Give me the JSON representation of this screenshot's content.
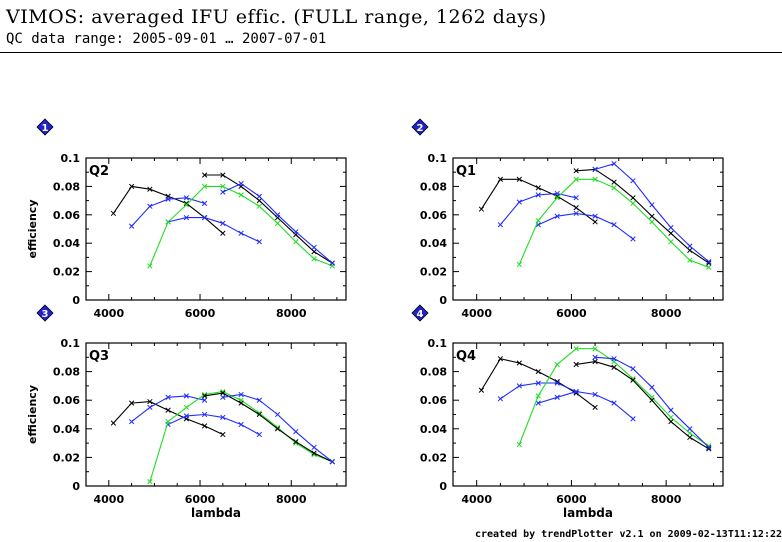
{
  "header": {
    "title": "VIMOS: averaged IFU effic. (FULL range, 1262 days)",
    "subtitle": "QC data range: 2005-09-01 … 2007-07-01"
  },
  "footer": {
    "text": "created by trendPlotter v2.1 on 2009-02-13T11:12:22"
  },
  "colors": {
    "black": "#000000",
    "blue": "#1f2bff",
    "green": "#22dd22",
    "marker": "#2222cc"
  },
  "chart_data": [
    {
      "type": "line",
      "marker": "1",
      "title": "Q2",
      "xlabel": "",
      "ylabel": "efficiency",
      "xlim": [
        3500,
        9200
      ],
      "ylim": [
        0,
        0.1
      ],
      "xticks": [
        "4000",
        "6000",
        "8000"
      ],
      "yticks": [
        "0",
        "0.02",
        "0.04",
        "0.06",
        "0.08",
        "0.1"
      ],
      "series": [
        {
          "color": "black",
          "x": [
            4100,
            4500,
            4900,
            5300,
            5700,
            6100,
            6500
          ],
          "y": [
            0.061,
            0.08,
            0.078,
            0.073,
            0.068,
            0.058,
            0.047
          ]
        },
        {
          "color": "blue",
          "x": [
            4500,
            4900,
            5300,
            5700,
            6100
          ],
          "y": [
            0.052,
            0.066,
            0.071,
            0.072,
            0.068
          ]
        },
        {
          "color": "blue",
          "x": [
            5300,
            5700,
            6100,
            6500,
            6900,
            7300
          ],
          "y": [
            0.055,
            0.058,
            0.058,
            0.054,
            0.047,
            0.041
          ]
        },
        {
          "color": "green",
          "x": [
            4900,
            5300,
            5700,
            6100,
            6500,
            6900,
            7300,
            7700,
            8100,
            8500,
            8900
          ],
          "y": [
            0.024,
            0.055,
            0.067,
            0.08,
            0.08,
            0.074,
            0.066,
            0.054,
            0.041,
            0.029,
            0.024
          ]
        },
        {
          "color": "black",
          "x": [
            6100,
            6500,
            6900,
            7300,
            7700,
            8100,
            8500,
            8900
          ],
          "y": [
            0.088,
            0.088,
            0.08,
            0.07,
            0.058,
            0.046,
            0.034,
            0.026
          ]
        },
        {
          "color": "blue",
          "x": [
            6500,
            6900,
            7300,
            7700,
            8100,
            8500,
            8900
          ],
          "y": [
            0.076,
            0.082,
            0.073,
            0.06,
            0.048,
            0.037,
            0.026
          ]
        }
      ]
    },
    {
      "type": "line",
      "marker": "2",
      "title": "Q1",
      "xlabel": "",
      "ylabel": "",
      "xlim": [
        3500,
        9200
      ],
      "ylim": [
        0,
        0.1
      ],
      "xticks": [
        "4000",
        "6000",
        "8000"
      ],
      "yticks": [
        "0",
        "0.02",
        "0.04",
        "0.06",
        "0.08",
        "0.1"
      ],
      "series": [
        {
          "color": "black",
          "x": [
            4100,
            4500,
            4900,
            5300,
            5700,
            6100,
            6500
          ],
          "y": [
            0.064,
            0.085,
            0.085,
            0.079,
            0.073,
            0.065,
            0.055
          ]
        },
        {
          "color": "blue",
          "x": [
            4500,
            4900,
            5300,
            5700,
            6100
          ],
          "y": [
            0.053,
            0.069,
            0.074,
            0.075,
            0.072
          ]
        },
        {
          "color": "blue",
          "x": [
            5300,
            5700,
            6100,
            6500,
            6900,
            7300
          ],
          "y": [
            0.053,
            0.059,
            0.061,
            0.059,
            0.053,
            0.043
          ]
        },
        {
          "color": "green",
          "x": [
            4900,
            5300,
            5700,
            6100,
            6500,
            6900,
            7300,
            7700,
            8100,
            8500,
            8900
          ],
          "y": [
            0.025,
            0.056,
            0.072,
            0.085,
            0.085,
            0.079,
            0.068,
            0.055,
            0.041,
            0.028,
            0.023
          ]
        },
        {
          "color": "black",
          "x": [
            6100,
            6500,
            6900,
            7300,
            7700,
            8100,
            8500,
            8900
          ],
          "y": [
            0.091,
            0.092,
            0.083,
            0.072,
            0.059,
            0.047,
            0.035,
            0.026
          ]
        },
        {
          "color": "blue",
          "x": [
            6500,
            6900,
            7300,
            7700,
            8100,
            8500,
            8900
          ],
          "y": [
            0.092,
            0.096,
            0.084,
            0.067,
            0.051,
            0.038,
            0.027
          ]
        }
      ]
    },
    {
      "type": "line",
      "marker": "3",
      "title": "Q3",
      "xlabel": "lambda",
      "ylabel": "efficiency",
      "xlim": [
        3500,
        9200
      ],
      "ylim": [
        0,
        0.1
      ],
      "xticks": [
        "4000",
        "6000",
        "8000"
      ],
      "yticks": [
        "0",
        "0.02",
        "0.04",
        "0.06",
        "0.08",
        "0.1"
      ],
      "series": [
        {
          "color": "black",
          "x": [
            4100,
            4500,
            4900,
            5300,
            5700,
            6100,
            6500
          ],
          "y": [
            0.044,
            0.058,
            0.059,
            0.053,
            0.047,
            0.042,
            0.036
          ]
        },
        {
          "color": "blue",
          "x": [
            4500,
            4900,
            5300,
            5700,
            6100
          ],
          "y": [
            0.045,
            0.055,
            0.062,
            0.063,
            0.06
          ]
        },
        {
          "color": "blue",
          "x": [
            5300,
            5700,
            6100,
            6500,
            6900,
            7300
          ],
          "y": [
            0.043,
            0.049,
            0.05,
            0.048,
            0.043,
            0.036
          ]
        },
        {
          "color": "green",
          "x": [
            4900,
            5300,
            5700,
            6100,
            6500,
            6900,
            7300,
            7700,
            8100,
            8500,
            8900
          ],
          "y": [
            0.003,
            0.045,
            0.055,
            0.064,
            0.066,
            0.06,
            0.051,
            0.041,
            0.03,
            0.022,
            0.017
          ]
        },
        {
          "color": "black",
          "x": [
            6100,
            6500,
            6900,
            7300,
            7700,
            8100,
            8500,
            8900
          ],
          "y": [
            0.063,
            0.065,
            0.058,
            0.05,
            0.04,
            0.031,
            0.023,
            0.017
          ]
        },
        {
          "color": "blue",
          "x": [
            6500,
            6900,
            7300,
            7700,
            8100,
            8500,
            8900
          ],
          "y": [
            0.062,
            0.064,
            0.06,
            0.05,
            0.038,
            0.027,
            0.017
          ]
        }
      ]
    },
    {
      "type": "line",
      "marker": "4",
      "title": "Q4",
      "xlabel": "lambda",
      "ylabel": "",
      "xlim": [
        3500,
        9200
      ],
      "ylim": [
        0,
        0.1
      ],
      "xticks": [
        "4000",
        "6000",
        "8000"
      ],
      "yticks": [
        "0",
        "0.02",
        "0.04",
        "0.06",
        "0.08",
        "0.1"
      ],
      "series": [
        {
          "color": "black",
          "x": [
            4100,
            4500,
            4900,
            5300,
            5700,
            6100,
            6500
          ],
          "y": [
            0.067,
            0.089,
            0.086,
            0.08,
            0.073,
            0.065,
            0.055
          ]
        },
        {
          "color": "blue",
          "x": [
            4500,
            4900,
            5300,
            5700,
            6100
          ],
          "y": [
            0.061,
            0.07,
            0.072,
            0.072,
            0.066
          ]
        },
        {
          "color": "blue",
          "x": [
            5300,
            5700,
            6100,
            6500,
            6900,
            7300
          ],
          "y": [
            0.058,
            0.062,
            0.066,
            0.064,
            0.058,
            0.047
          ]
        },
        {
          "color": "green",
          "x": [
            4900,
            5300,
            5700,
            6100,
            6500,
            6900,
            7300,
            7700,
            8100,
            8500,
            8900
          ],
          "y": [
            0.029,
            0.063,
            0.085,
            0.096,
            0.096,
            0.087,
            0.075,
            0.062,
            0.048,
            0.037,
            0.028
          ]
        },
        {
          "color": "black",
          "x": [
            6100,
            6500,
            6900,
            7300,
            7700,
            8100,
            8500,
            8900
          ],
          "y": [
            0.085,
            0.087,
            0.083,
            0.074,
            0.06,
            0.045,
            0.034,
            0.026
          ]
        },
        {
          "color": "blue",
          "x": [
            6500,
            6900,
            7300,
            7700,
            8100,
            8500,
            8900
          ],
          "y": [
            0.09,
            0.089,
            0.082,
            0.069,
            0.053,
            0.04,
            0.027
          ]
        }
      ]
    }
  ]
}
